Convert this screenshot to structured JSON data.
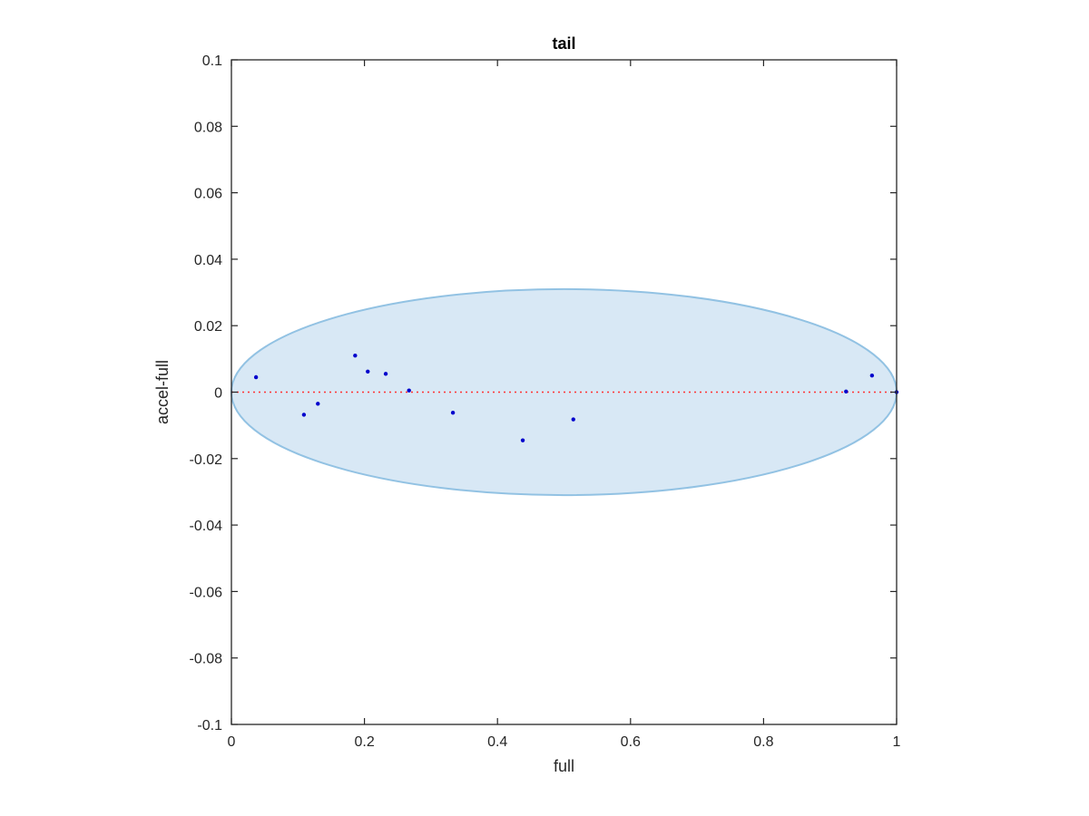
{
  "chart_data": {
    "type": "scatter",
    "title": "tail",
    "xlabel": "full",
    "ylabel": "accel-full",
    "xlim": [
      0,
      1
    ],
    "ylim": [
      -0.1,
      0.1
    ],
    "xticks": [
      0,
      0.2,
      0.4,
      0.6,
      0.8,
      1
    ],
    "xtick_labels": [
      "0",
      "0.2",
      "0.4",
      "0.6",
      "0.8",
      "1"
    ],
    "yticks": [
      -0.1,
      -0.08,
      -0.06,
      -0.04,
      -0.02,
      0,
      0.02,
      0.04,
      0.06,
      0.08,
      0.1
    ],
    "ytick_labels": [
      "-0.1",
      "-0.08",
      "-0.06",
      "-0.04",
      "-0.02",
      "0",
      "0.02",
      "0.04",
      "0.06",
      "0.08",
      "0.1"
    ],
    "grid": false,
    "series": [
      {
        "type": "scatter",
        "color": "#0000cc",
        "points": [
          {
            "x": 0.037,
            "y": 0.0045
          },
          {
            "x": 0.109,
            "y": -0.0068
          },
          {
            "x": 0.13,
            "y": -0.0035
          },
          {
            "x": 0.186,
            "y": 0.011
          },
          {
            "x": 0.205,
            "y": 0.0062
          },
          {
            "x": 0.232,
            "y": 0.0055
          },
          {
            "x": 0.267,
            "y": 0.0005
          },
          {
            "x": 0.333,
            "y": -0.0062
          },
          {
            "x": 0.438,
            "y": -0.0145
          },
          {
            "x": 0.514,
            "y": -0.0082
          },
          {
            "x": 0.924,
            "y": 0.0002
          },
          {
            "x": 0.963,
            "y": 0.005
          },
          {
            "x": 1.0,
            "y": 0.0
          }
        ]
      }
    ],
    "reference_line": {
      "y": 0,
      "color": "#ff3333",
      "style": "dotted"
    },
    "ellipse": {
      "cx": 0.5,
      "cy": 0.0,
      "rx": 0.5,
      "ry": 0.031,
      "fill": "#d8e8f5",
      "stroke": "#92c2e3"
    }
  }
}
